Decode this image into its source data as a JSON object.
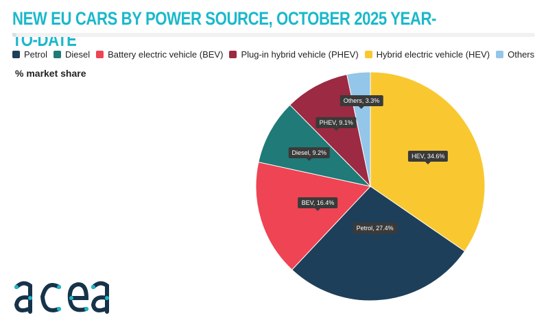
{
  "title": "NEW EU CARS BY POWER SOURCE, OCTOBER 2025 YEAR-TO-DATE",
  "logo_text": "acea",
  "chart_data": {
    "type": "pie",
    "title": "NEW EU CARS BY POWER SOURCE, OCTOBER 2025 YEAR-TO-DATE",
    "unit_label": "% market share",
    "legend_position": "top",
    "legend": [
      "Petrol",
      "Diesel",
      "Battery electric vehicle (BEV)",
      "Plug-in hybrid vehicle (PHEV)",
      "Hybrid electric vehicle (HEV)",
      "Others"
    ],
    "slices": [
      {
        "name": "HEV",
        "value": 34.6,
        "label": "HEV, 34.6%",
        "color": "#f9c831"
      },
      {
        "name": "Petrol",
        "value": 27.4,
        "label": "Petrol, 27.4%",
        "color": "#1d3f5a"
      },
      {
        "name": "BEV",
        "value": 16.4,
        "label": "BEV, 16.4%",
        "color": "#ee4454"
      },
      {
        "name": "Diesel",
        "value": 9.2,
        "label": "Diesel, 9.2%",
        "color": "#1f7a78"
      },
      {
        "name": "PHEV",
        "value": 9.1,
        "label": "PHEV, 9.1%",
        "color": "#9b2a42"
      },
      {
        "name": "Others",
        "value": 3.3,
        "label": "Others, 3.3%",
        "color": "#93c6e8"
      }
    ],
    "legend_colors": [
      "#1d3f5a",
      "#1f7a78",
      "#ee4454",
      "#9b2a42",
      "#f9c831",
      "#93c6e8"
    ]
  }
}
